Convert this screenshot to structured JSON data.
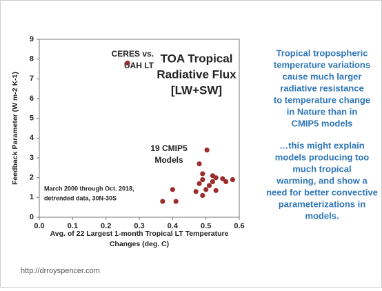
{
  "chart_data": {
    "type": "scatter",
    "title": [
      "TOA Tropical",
      "Radiative Flux",
      "[LW+SW]"
    ],
    "x_label": [
      "Avg. of 22 Largest 1-month Tropical LT Temperature",
      "Changes (deg. C)"
    ],
    "y_label": "Feedback Parameter (W m-2 K-1)",
    "x": [
      0.265,
      0.503,
      0.48,
      0.49,
      0.49,
      0.52,
      0.53,
      0.48,
      0.52,
      0.55,
      0.58,
      0.56,
      0.5,
      0.53,
      0.47,
      0.49,
      0.4,
      0.41,
      0.37,
      0.51
    ],
    "values": [
      7.8,
      3.4,
      2.7,
      2.2,
      1.9,
      2.1,
      2.0,
      1.7,
      1.8,
      1.95,
      1.9,
      1.8,
      1.4,
      1.35,
      1.3,
      1.1,
      1.4,
      0.8,
      0.8,
      1.6
    ],
    "color": "#9b2d2d",
    "xlim": [
      0,
      0.6
    ],
    "xticks": [
      {
        "value": 0,
        "label": "0.0"
      },
      0.1,
      0.2,
      0.3,
      0.4,
      0.5,
      0.6
    ],
    "ylim": [
      0,
      9
    ],
    "yticks": [
      0,
      1,
      2,
      3,
      4,
      5,
      6,
      7,
      8,
      9
    ],
    "annotations": [
      [
        "CERES vs.",
        "UAH LT"
      ],
      [
        "19 CMIP5",
        "Models"
      ],
      [
        "March 2000 through Oct. 2018,",
        "detrended data, 30N-30S"
      ]
    ]
  },
  "side_text": [
    [
      "Tropical tropospheric",
      "temperature variations",
      "cause much larger",
      "radiative resistance",
      "to temperature change",
      "in Nature than in",
      "CMIP5 models"
    ],
    [
      "…this might explain",
      "models producing too",
      "much tropical",
      "warming, and show a",
      "need for better convective",
      "parameterizations in",
      "models."
    ]
  ],
  "footer": "http://drroyspencer.com"
}
